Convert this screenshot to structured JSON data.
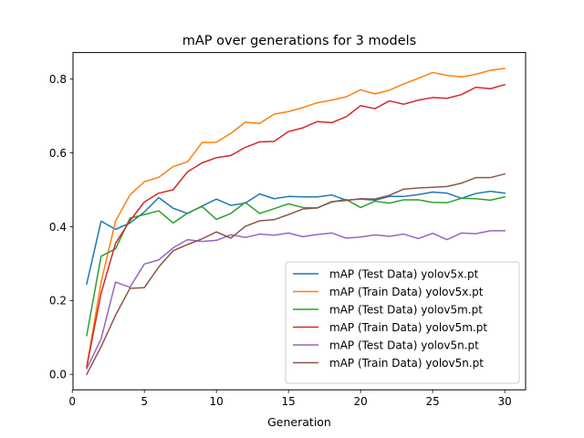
{
  "chart_data": {
    "type": "line",
    "title": "mAP over generations for 3 models",
    "xlabel": "Generation",
    "ylabel": "",
    "xlim": [
      0.05,
      31.45
    ],
    "ylim": [
      -0.042,
      0.872
    ],
    "xticks": [
      0,
      5,
      10,
      15,
      20,
      25,
      30
    ],
    "yticks": [
      0.0,
      0.2,
      0.4,
      0.6,
      0.8
    ],
    "xtick_labels": [
      "0",
      "5",
      "10",
      "15",
      "20",
      "25",
      "30"
    ],
    "ytick_labels": [
      "0.0",
      "0.2",
      "0.4",
      "0.6",
      "0.8"
    ],
    "legend_position": "lower-right",
    "x": [
      1,
      2,
      3,
      4,
      5,
      6,
      7,
      8,
      9,
      10,
      11,
      12,
      13,
      14,
      15,
      16,
      17,
      18,
      19,
      20,
      21,
      22,
      23,
      24,
      25,
      26,
      27,
      28,
      29,
      30
    ],
    "series": [
      {
        "name": "mAP (Test Data) yolov5x.pt",
        "color": "#1f77b4",
        "values": [
          0.245,
          0.415,
          0.393,
          0.41,
          0.44,
          0.479,
          0.45,
          0.436,
          0.456,
          0.475,
          0.458,
          0.464,
          0.489,
          0.476,
          0.482,
          0.481,
          0.481,
          0.486,
          0.472,
          0.475,
          0.472,
          0.482,
          0.482,
          0.487,
          0.494,
          0.491,
          0.477,
          0.49,
          0.496,
          0.491
        ]
      },
      {
        "name": "mAP (Train Data) yolov5x.pt",
        "color": "#ff7f0e",
        "values": [
          0.02,
          0.25,
          0.415,
          0.486,
          0.522,
          0.534,
          0.563,
          0.576,
          0.628,
          0.629,
          0.653,
          0.683,
          0.68,
          0.705,
          0.712,
          0.723,
          0.736,
          0.743,
          0.752,
          0.771,
          0.76,
          0.77,
          0.787,
          0.802,
          0.818,
          0.81,
          0.806,
          0.813,
          0.824,
          0.829
        ]
      },
      {
        "name": "mAP (Test Data) yolov5m.pt",
        "color": "#2ca02c",
        "values": [
          0.105,
          0.32,
          0.34,
          0.423,
          0.433,
          0.443,
          0.41,
          0.437,
          0.455,
          0.42,
          0.436,
          0.466,
          0.436,
          0.449,
          0.462,
          0.452,
          0.451,
          0.467,
          0.474,
          0.452,
          0.469,
          0.464,
          0.473,
          0.473,
          0.466,
          0.465,
          0.477,
          0.476,
          0.472,
          0.481
        ]
      },
      {
        "name": "mAP (Train Data) yolov5m.pt",
        "color": "#d62728",
        "values": [
          0.02,
          0.22,
          0.355,
          0.416,
          0.467,
          0.491,
          0.5,
          0.549,
          0.573,
          0.587,
          0.593,
          0.615,
          0.63,
          0.631,
          0.658,
          0.668,
          0.685,
          0.682,
          0.698,
          0.728,
          0.72,
          0.741,
          0.732,
          0.743,
          0.75,
          0.748,
          0.758,
          0.778,
          0.774,
          0.785
        ]
      },
      {
        "name": "mAP (Test Data) yolov5n.pt",
        "color": "#9467bd",
        "values": [
          0.015,
          0.096,
          0.25,
          0.236,
          0.299,
          0.31,
          0.343,
          0.365,
          0.36,
          0.363,
          0.378,
          0.371,
          0.38,
          0.377,
          0.383,
          0.373,
          0.379,
          0.383,
          0.369,
          0.372,
          0.378,
          0.374,
          0.38,
          0.368,
          0.382,
          0.365,
          0.383,
          0.381,
          0.389,
          0.389
        ]
      },
      {
        "name": "mAP (Train Data) yolov5n.pt",
        "color": "#8c564b",
        "values": [
          0.0,
          0.075,
          0.16,
          0.233,
          0.235,
          0.291,
          0.335,
          0.352,
          0.367,
          0.386,
          0.369,
          0.401,
          0.416,
          0.419,
          0.433,
          0.448,
          0.451,
          0.468,
          0.471,
          0.476,
          0.475,
          0.485,
          0.502,
          0.505,
          0.507,
          0.509,
          0.518,
          0.533,
          0.533,
          0.543
        ]
      }
    ]
  }
}
